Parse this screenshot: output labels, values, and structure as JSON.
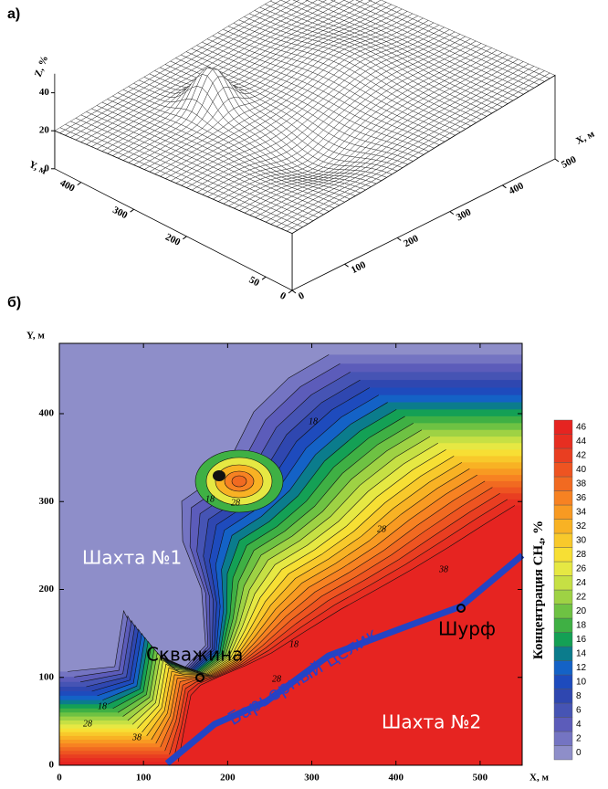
{
  "chart_data": [
    {
      "type": "surface",
      "label": "а)",
      "xlabel": "X, м",
      "ylabel": "Y, м",
      "zlabel": "Z, %",
      "xlim": [
        0,
        500
      ],
      "ylim": [
        0,
        450
      ],
      "zlim": [
        0,
        50
      ],
      "xticks": [
        0,
        100,
        200,
        300,
        400,
        500
      ],
      "yticks": [
        0,
        50,
        200,
        300,
        400
      ],
      "zticks": [
        0,
        20,
        40
      ]
    },
    {
      "type": "contour",
      "label": "б)",
      "xlabel": "X, м",
      "ylabel": "Y, м",
      "xlim": [
        0,
        550
      ],
      "ylim": [
        0,
        480
      ],
      "xticks": [
        0,
        100,
        200,
        300,
        400,
        500
      ],
      "yticks": [
        0,
        100,
        200,
        300,
        400
      ],
      "colorbar": {
        "label": "Концентрация CH₄, %",
        "levels": [
          0,
          2,
          4,
          6,
          8,
          10,
          12,
          14,
          16,
          18,
          20,
          22,
          24,
          26,
          28,
          30,
          32,
          34,
          36,
          38,
          40,
          42,
          44,
          46
        ],
        "colors": [
          "#8e8ec9",
          "#7474c2",
          "#5c5cba",
          "#4654b4",
          "#2f47b0",
          "#1e4bbd",
          "#1462c6",
          "#0b7c8c",
          "#14a055",
          "#3fb044",
          "#6ec243",
          "#9ed244",
          "#c6e044",
          "#e6e843",
          "#f7df34",
          "#f8c92b",
          "#f8b224",
          "#f89a22",
          "#f78222",
          "#f16a21",
          "#ee5421",
          "#e93e21",
          "#e72e21",
          "#e62421"
        ]
      },
      "contour_labels": [
        18,
        28,
        18,
        28,
        38,
        18,
        28,
        38,
        18,
        28
      ],
      "annotations": {
        "mine1": "Шахта №1",
        "mine2": "Шахта №2",
        "well": "Скважина",
        "pit": "Шурф",
        "barrier": "Барьерный целик"
      }
    }
  ]
}
